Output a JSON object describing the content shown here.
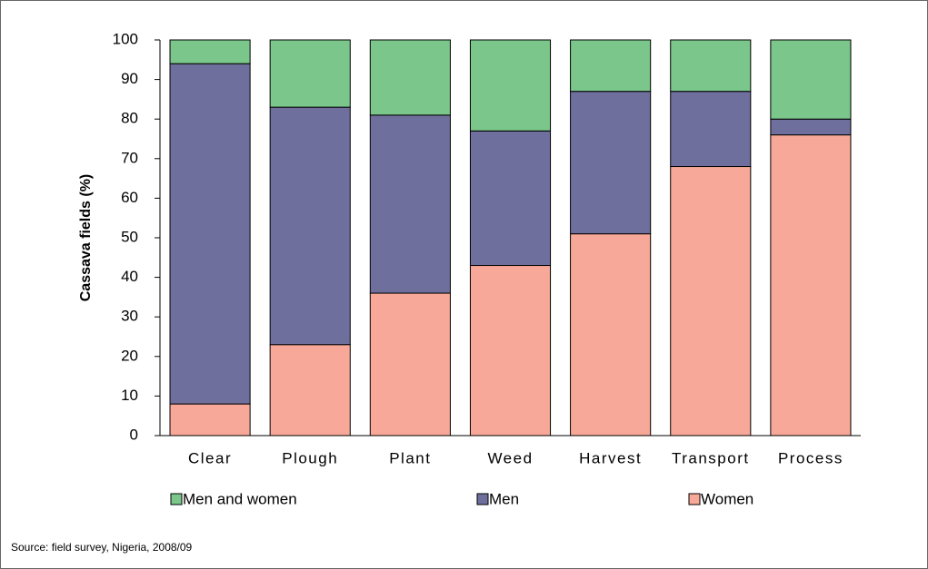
{
  "chart_data": {
    "type": "stacked_bar",
    "y_label": "Cassava fields (%)",
    "source": "Source: field survey, Nigeria, 2008/09",
    "categories": [
      "Clear",
      "Plough",
      "Plant",
      "Weed",
      "Harvest",
      "Transport",
      "Process"
    ],
    "series": [
      {
        "name": "Men and women",
        "color": "#7bc68a",
        "values": [
          6,
          17,
          19,
          23,
          13,
          13,
          20
        ]
      },
      {
        "name": "Men",
        "color": "#6f6f9d",
        "values": [
          86,
          60,
          45,
          34,
          36,
          19,
          4
        ]
      },
      {
        "name": "Women",
        "color": "#f7a898",
        "values": [
          8,
          23,
          36,
          43,
          51,
          68,
          76
        ]
      }
    ],
    "ylim": [
      0,
      100
    ],
    "yticks": [
      0,
      10,
      20,
      30,
      40,
      50,
      60,
      70,
      80,
      90,
      100
    ],
    "grid": false
  }
}
